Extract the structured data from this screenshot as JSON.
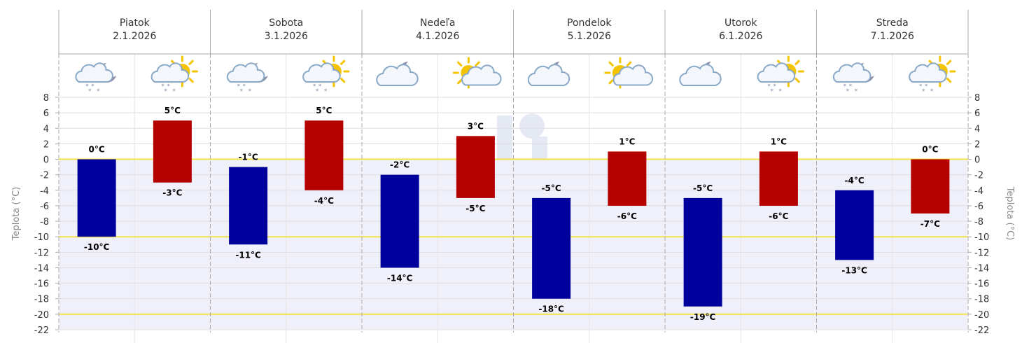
{
  "chart_data": {
    "type": "bar",
    "subtype": "floating-range",
    "xlabel": "",
    "ylabel": "Teplota (°C)",
    "ylabel_right": "Teplota (°C)",
    "ylim": [
      -22,
      8
    ],
    "yticks": [
      8,
      6,
      4,
      2,
      0,
      -2,
      -4,
      -6,
      -8,
      -10,
      -12,
      -14,
      -16,
      -18,
      -20,
      -22
    ],
    "highlight_lines": [
      0,
      -10,
      -20
    ],
    "grid": true,
    "legend": "none",
    "days": [
      {
        "name": "Piatok",
        "date": "2.1.2026"
      },
      {
        "name": "Sobota",
        "date": "3.1.2026"
      },
      {
        "name": "Nedeľa",
        "date": "4.1.2026"
      },
      {
        "name": "Pondelok",
        "date": "5.1.2026"
      },
      {
        "name": "Utorok",
        "date": "6.1.2026"
      },
      {
        "name": "Streda",
        "date": "7.1.2026"
      }
    ],
    "series": [
      {
        "period": "night",
        "color": "#00009c",
        "ranges": [
          {
            "high": 0,
            "low": -10,
            "high_label": "0°C",
            "low_label": "-10°C",
            "icon": "snow-cloud-moon-icon"
          },
          {
            "high": -1,
            "low": -11,
            "high_label": "-1°C",
            "low_label": "-11°C",
            "icon": "snow-cloud-moon-icon"
          },
          {
            "high": -2,
            "low": -14,
            "high_label": "-2°C",
            "low_label": "-14°C",
            "icon": "cloud-moon-icon"
          },
          {
            "high": -5,
            "low": -18,
            "high_label": "-5°C",
            "low_label": "-18°C",
            "icon": "cloud-moon-icon"
          },
          {
            "high": -5,
            "low": -19,
            "high_label": "-5°C",
            "low_label": "-19°C",
            "icon": "cloud-moon-icon"
          },
          {
            "high": -4,
            "low": -13,
            "high_label": "-4°C",
            "low_label": "-13°C",
            "icon": "snow-cloud-moon-icon"
          }
        ]
      },
      {
        "period": "day",
        "color": "#b50000",
        "ranges": [
          {
            "high": 5,
            "low": -3,
            "high_label": "5°C",
            "low_label": "-3°C",
            "icon": "snow-cloud-sun-icon"
          },
          {
            "high": 5,
            "low": -4,
            "high_label": "5°C",
            "low_label": "-4°C",
            "icon": "snow-cloud-sun-icon"
          },
          {
            "high": 3,
            "low": -5,
            "high_label": "3°C",
            "low_label": "-5°C",
            "icon": "sun-cloud-icon"
          },
          {
            "high": 1,
            "low": -6,
            "high_label": "1°C",
            "low_label": "-6°C",
            "icon": "sun-cloud-icon"
          },
          {
            "high": 1,
            "low": -6,
            "high_label": "1°C",
            "low_label": "-6°C",
            "icon": "snow-cloud-sun-icon"
          },
          {
            "high": 0,
            "low": -7,
            "high_label": "0°C",
            "low_label": "-7°C",
            "icon": "snow-cloud-sun-icon"
          }
        ]
      }
    ],
    "colors": {
      "plot_band": "#f0f0fa",
      "highlight_line": "#f2e34a",
      "grid": "#dddddd",
      "separator": "#aaaaaa"
    }
  }
}
